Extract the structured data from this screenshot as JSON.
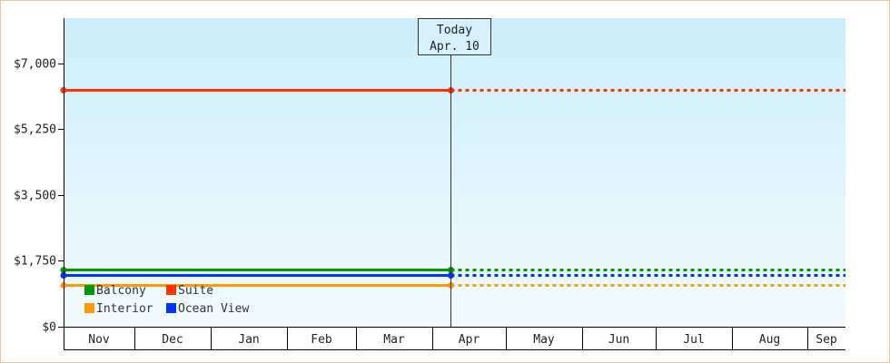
{
  "chart_data": {
    "type": "line",
    "x_categories": [
      "Nov",
      "Dec",
      "Jan",
      "Feb",
      "Mar",
      "Apr",
      "May",
      "Jun",
      "Jul",
      "Aug",
      "Sep"
    ],
    "y_ticks": [
      "$0",
      "$1,750",
      "$3,500",
      "$5,250",
      "$7,000"
    ],
    "ylim": [
      0,
      8200
    ],
    "y_tick_values": [
      0,
      1750,
      3500,
      5250,
      7000
    ],
    "today": {
      "line1": "Today",
      "line2": "Apr. 10",
      "x_month_index": 5.25
    },
    "series": [
      {
        "name": "Suite",
        "color": "#ff3300",
        "value": 6300
      },
      {
        "name": "Balcony",
        "color": "#009900",
        "value": 1520
      },
      {
        "name": "Ocean View",
        "color": "#0033ff",
        "value": 1370
      },
      {
        "name": "Interior",
        "color": "#ff9900",
        "value": 1100
      }
    ],
    "legend": [
      {
        "name": "Balcony",
        "color": "#009900"
      },
      {
        "name": "Suite",
        "color": "#ff3300"
      },
      {
        "name": "Interior",
        "color": "#ff9900"
      },
      {
        "name": "Ocean View",
        "color": "#0033ff"
      }
    ],
    "colors": {
      "plot_top": "#cbeefa",
      "plot_bottom": "#f2fbfe",
      "frame": "#f0c898"
    }
  }
}
